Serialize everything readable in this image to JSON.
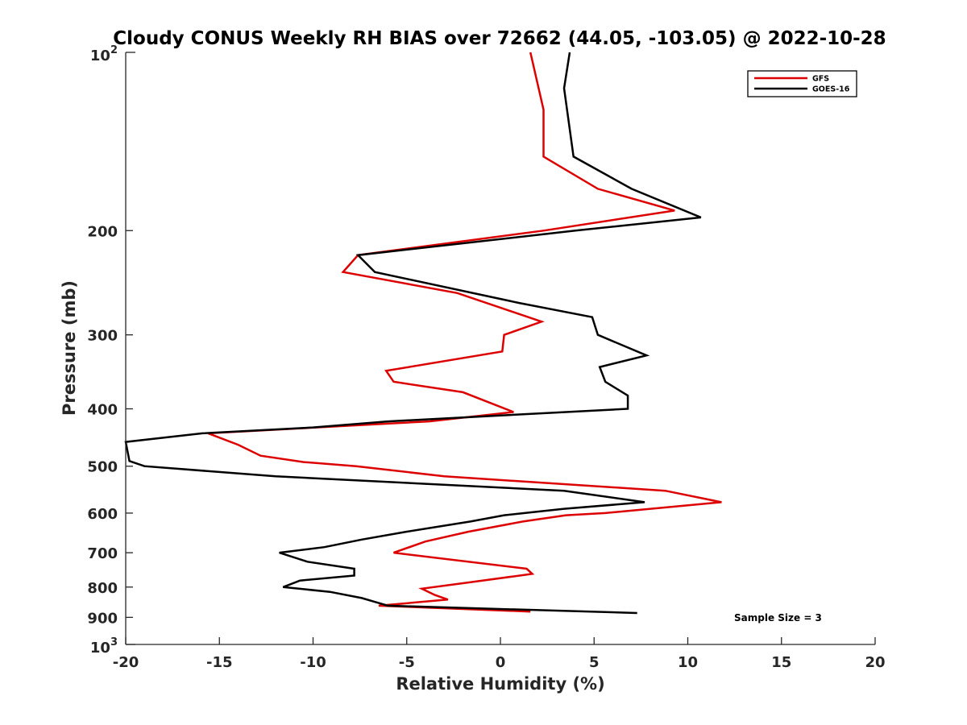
{
  "chart_data": {
    "type": "line",
    "title": "Cloudy CONUS Weekly RH BIAS over 72662 (44.05, -103.05) @ 2022-10-28",
    "xlabel": "Relative Humidity (%)",
    "ylabel": "Pressure (mb)",
    "xlim": [
      -20,
      20
    ],
    "ylim": [
      100,
      1000
    ],
    "y_scale": "log",
    "y_reversed": true,
    "x_ticks": [
      -20,
      -15,
      -10,
      -5,
      0,
      5,
      10,
      15,
      20
    ],
    "x_tick_labels": [
      "-20",
      "-15",
      "-10",
      "-5",
      "0",
      "5",
      "10",
      "15",
      "20"
    ],
    "y_ticks": [
      200,
      300,
      400,
      500,
      600,
      700,
      800,
      900
    ],
    "y_tick_labels": [
      "200",
      "300",
      "400",
      "500",
      "600",
      "700",
      "800",
      "900"
    ],
    "y_major_ticks": [
      {
        "value": 100,
        "base": "10",
        "exp": "2"
      },
      {
        "value": 1000,
        "base": "10",
        "exp": "3"
      }
    ],
    "grid": false,
    "legend_position": "top-right",
    "annotation": "Sample Size = 3",
    "series": [
      {
        "name": "GFS",
        "color": "#dd0000",
        "points": [
          [
            1.6,
            100
          ],
          [
            2.3,
            125
          ],
          [
            2.3,
            150
          ],
          [
            5.2,
            170
          ],
          [
            9.3,
            185
          ],
          [
            2.3,
            200
          ],
          [
            -7.6,
            220
          ],
          [
            -8.4,
            235
          ],
          [
            -2.3,
            255
          ],
          [
            2.2,
            285
          ],
          [
            0.2,
            300
          ],
          [
            0.1,
            320
          ],
          [
            -6.1,
            345
          ],
          [
            -5.7,
            360
          ],
          [
            -2.0,
            375
          ],
          [
            0.7,
            405
          ],
          [
            -3.8,
            420
          ],
          [
            -15.6,
            440
          ],
          [
            -14.0,
            460
          ],
          [
            -12.8,
            480
          ],
          [
            -10.5,
            492
          ],
          [
            -7.7,
            500
          ],
          [
            -3.0,
            520
          ],
          [
            8.8,
            550
          ],
          [
            11.8,
            575
          ],
          [
            5.6,
            600
          ],
          [
            3.5,
            605
          ],
          [
            1.2,
            620
          ],
          [
            -1.7,
            645
          ],
          [
            -4.0,
            670
          ],
          [
            -5.7,
            700
          ],
          [
            1.4,
            745
          ],
          [
            1.7,
            760
          ],
          [
            -1.6,
            785
          ],
          [
            -4.2,
            805
          ],
          [
            -3.5,
            825
          ],
          [
            -2.8,
            840
          ],
          [
            -6.5,
            860
          ],
          [
            1.6,
            880
          ]
        ]
      },
      {
        "name": "GOES-16",
        "color": "#000000",
        "points": [
          [
            3.7,
            100
          ],
          [
            3.4,
            115
          ],
          [
            3.9,
            150
          ],
          [
            7.0,
            170
          ],
          [
            10.7,
            190
          ],
          [
            4.0,
            200
          ],
          [
            -7.6,
            220
          ],
          [
            -6.7,
            235
          ],
          [
            1.0,
            265
          ],
          [
            4.9,
            280
          ],
          [
            5.2,
            300
          ],
          [
            7.8,
            325
          ],
          [
            5.3,
            340
          ],
          [
            5.6,
            360
          ],
          [
            6.8,
            380
          ],
          [
            6.8,
            400
          ],
          [
            -6.0,
            420
          ],
          [
            -10.0,
            430
          ],
          [
            -15.9,
            440
          ],
          [
            -20.0,
            455
          ],
          [
            -19.8,
            490
          ],
          [
            -19.0,
            500
          ],
          [
            -12.0,
            520
          ],
          [
            3.4,
            550
          ],
          [
            7.7,
            575
          ],
          [
            3.4,
            590
          ],
          [
            0.2,
            605
          ],
          [
            -1.6,
            620
          ],
          [
            -5.0,
            645
          ],
          [
            -7.4,
            665
          ],
          [
            -9.4,
            685
          ],
          [
            -11.8,
            700
          ],
          [
            -10.3,
            725
          ],
          [
            -7.8,
            745
          ],
          [
            -7.8,
            765
          ],
          [
            -10.7,
            780
          ],
          [
            -11.6,
            800
          ],
          [
            -9.1,
            815
          ],
          [
            -7.4,
            835
          ],
          [
            -6.0,
            860
          ],
          [
            7.3,
            885
          ]
        ]
      }
    ]
  }
}
